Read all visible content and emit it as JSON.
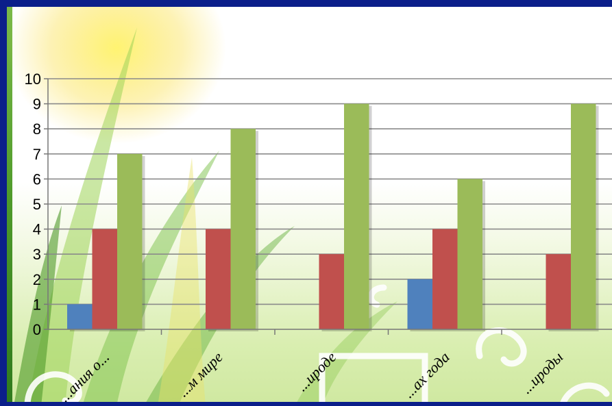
{
  "chart_data": {
    "type": "bar",
    "categories": [
      "...ания о...",
      "...м мире",
      "...ироде",
      "...ах года",
      "...ироды"
    ],
    "series": [
      {
        "values": [
          1,
          null,
          null,
          2,
          null
        ],
        "color": "#4f81bd"
      },
      {
        "values": [
          4,
          4,
          3,
          4,
          3
        ],
        "color": "#c0504d"
      },
      {
        "values": [
          7,
          8,
          9,
          6,
          9
        ],
        "color": "#9bbb59"
      }
    ],
    "ylim": [
      0,
      10
    ],
    "yticks": [
      "0",
      "1",
      "2",
      "3",
      "4",
      "5",
      "6",
      "7",
      "8",
      "9",
      "10"
    ],
    "grid": true,
    "title": "",
    "xlabel": "",
    "ylabel": ""
  }
}
